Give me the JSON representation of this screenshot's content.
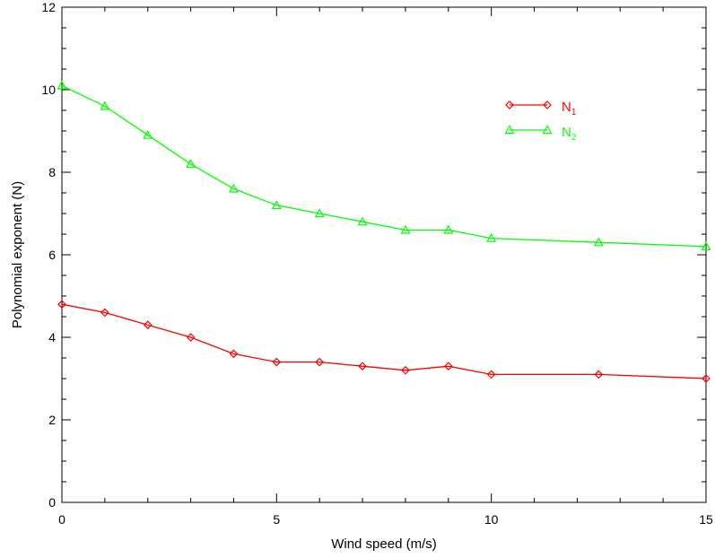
{
  "chart_data": {
    "type": "line",
    "title": "",
    "xlabel": "Wind speed (m/s)",
    "ylabel": "Polynomial exponent (N)",
    "xlim": [
      0,
      15
    ],
    "ylim": [
      0,
      12
    ],
    "xticks": [
      0,
      5,
      10,
      15
    ],
    "yticks": [
      0,
      2,
      4,
      6,
      8,
      10,
      12
    ],
    "grid": false,
    "legend_position": "top-right",
    "series": [
      {
        "name": "N1",
        "label_main": "N",
        "label_sub": "1",
        "color": "#ff0000",
        "marker": "diamond",
        "x": [
          0,
          1,
          2,
          3,
          4,
          5,
          6,
          7,
          8,
          9,
          10,
          12.5,
          15
        ],
        "y": [
          4.8,
          4.6,
          4.3,
          4.0,
          3.6,
          3.4,
          3.4,
          3.3,
          3.2,
          3.3,
          3.1,
          3.1,
          3.0
        ]
      },
      {
        "name": "N2",
        "label_main": "N",
        "label_sub": "2",
        "color": "#00ff00",
        "marker": "triangle",
        "x": [
          0,
          1,
          2,
          3,
          4,
          5,
          6,
          7,
          8,
          9,
          10,
          12.5,
          15
        ],
        "y": [
          10.1,
          9.6,
          8.9,
          8.2,
          7.6,
          7.2,
          7.0,
          6.8,
          6.6,
          6.6,
          6.4,
          6.3,
          6.2
        ]
      }
    ]
  }
}
